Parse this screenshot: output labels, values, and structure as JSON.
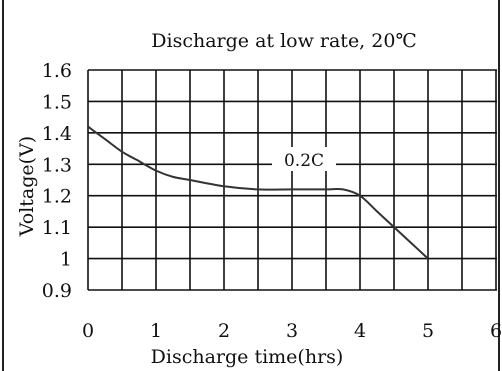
{
  "chart_data": {
    "type": "line",
    "title": "Discharge at low rate, 20℃",
    "xlabel": "Discharge time(hrs)",
    "ylabel": "Voltage(V)",
    "xlim": [
      0,
      6
    ],
    "ylim": [
      0.9,
      1.6
    ],
    "x_ticks": [
      "0",
      "1",
      "2",
      "3",
      "4",
      "5",
      "6"
    ],
    "y_ticks": [
      "1.6",
      "1.5",
      "1.4",
      "1.3",
      "1.2",
      "1.1",
      "1",
      "0.9"
    ],
    "grid": true,
    "annotation": "0.2C",
    "series": [
      {
        "name": "0.2C",
        "x": [
          0,
          0.25,
          0.5,
          0.75,
          1.0,
          1.25,
          1.5,
          2.0,
          2.5,
          3.0,
          3.5,
          3.75,
          4.0,
          4.25,
          4.5,
          4.75,
          5.0
        ],
        "y": [
          1.42,
          1.38,
          1.34,
          1.31,
          1.28,
          1.26,
          1.25,
          1.23,
          1.22,
          1.22,
          1.22,
          1.22,
          1.2,
          1.15,
          1.1,
          1.05,
          1.0
        ]
      }
    ]
  }
}
